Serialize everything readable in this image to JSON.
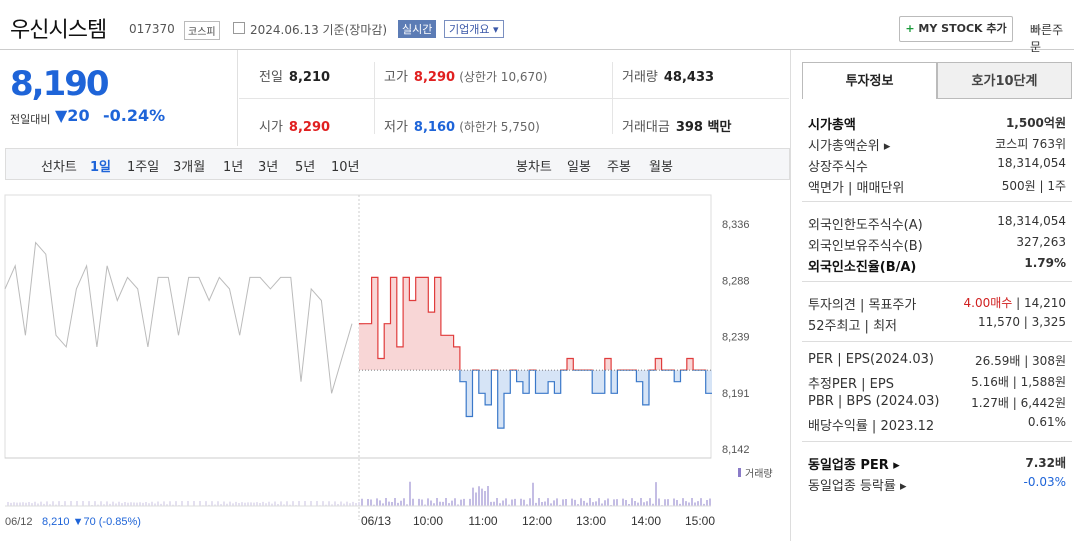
{
  "header": {
    "name": "우신시스템",
    "code": "017370",
    "market": "코스피",
    "asof": "2024.06.13 기준(장마감)",
    "live_label": "실시간",
    "corp_label": "기업개요 ▾",
    "mystock_plus": "+",
    "mystock_label": " MY STOCK 추가",
    "quick_label": "빠른주문"
  },
  "price": {
    "value": "8,190",
    "change_label": "전일대비",
    "change": "▼20",
    "pct": "-0.24%"
  },
  "stats": {
    "prev_l": "전일",
    "prev_v": "8,210",
    "high_l": "고가",
    "high_v": "8,290",
    "high_sub": "(상한가 10,670)",
    "vol_l": "거래량",
    "vol_v": "48,433",
    "open_l": "시가",
    "open_v": "8,290",
    "low_l": "저가",
    "low_v": "8,160",
    "low_sub": "(하한가 5,750)",
    "amt_l": "거래대금",
    "amt_v": "398 백만"
  },
  "periods": {
    "line_label": "선차트",
    "line": [
      "1일",
      "1주일",
      "3개월",
      "1년",
      "3년",
      "5년",
      "10년"
    ],
    "candle_label": "봉차트",
    "candle": [
      "일봉",
      "주봉",
      "월봉"
    ]
  },
  "chart_data": {
    "type": "line",
    "ylim": [
      8142,
      8336
    ],
    "yticks": [
      "8,336",
      "8,288",
      "8,239",
      "8,191",
      "8,142"
    ],
    "xticks": [
      "06/13",
      "10:00",
      "11:00",
      "12:00",
      "13:00",
      "14:00",
      "15:00"
    ],
    "xstart": "06/12",
    "prev_summary": "8,210 ▼70 (-0.85%)",
    "volume_label": "거래량",
    "baseline": 8210,
    "prev_day": [
      8280,
      8300,
      8240,
      8320,
      8310,
      8240,
      8230,
      8280,
      8300,
      8230,
      8300,
      8270,
      8290,
      8280,
      8230,
      8290,
      8290,
      8240,
      8290,
      8290,
      8270,
      8290,
      8280,
      8240,
      8290,
      8290,
      8280,
      8290,
      8290,
      8200,
      8280,
      8270,
      8190,
      8220,
      8250
    ],
    "today": [
      8250,
      8250,
      8290,
      8220,
      8250,
      8290,
      8230,
      8290,
      8270,
      8290,
      8290,
      8260,
      8290,
      8240,
      8240,
      8230,
      8200,
      8170,
      8210,
      8190,
      8180,
      8210,
      8160,
      8190,
      8210,
      8200,
      8190,
      8210,
      8190,
      8190,
      8200,
      8190,
      8210,
      8220,
      8210,
      8210,
      8210,
      8190,
      8190,
      8220,
      8190,
      8210,
      8210,
      8210,
      8200,
      8180,
      8210,
      8220,
      8210,
      8210,
      8200,
      8210,
      8220,
      8210,
      8210,
      8190,
      8190
    ],
    "series_colors": {
      "up": "#e03c3c",
      "down": "#3a78c9",
      "prev": "#bbbbbb"
    }
  },
  "side": {
    "tab_on": "투자정보",
    "tab_off": "호가10단계",
    "rows1": [
      {
        "k": "시가총액",
        "v": "1,500억원"
      },
      {
        "k": "시가총액순위 ▸",
        "v": "코스피 763위"
      },
      {
        "k": "상장주식수",
        "v": "18,314,054"
      },
      {
        "k": "액면가 | 매매단위",
        "v": "500원 | 1주"
      }
    ],
    "rows2": [
      {
        "k": "외국인한도주식수(A)",
        "v": "18,314,054"
      },
      {
        "k": "외국인보유주식수(B)",
        "v": "327,263"
      },
      {
        "k": "외국인소진율(B/A)",
        "v": "1.79%"
      }
    ],
    "opinion": {
      "k": "투자의견 | 목표주가",
      "v1": "4.00매수",
      "v2": " | 14,210"
    },
    "wk52": {
      "k": "52주최고 | 최저",
      "v": "11,570 | 3,325"
    },
    "rows4": [
      {
        "k": "PER | EPS(2024.03)",
        "v": "26.59배 | 308원"
      },
      {
        "k": "추정PER | EPS",
        "v": "5.16배 | 1,588원"
      },
      {
        "k": "PBR | BPS (2024.03)",
        "v": "1.27배 | 6,442원"
      },
      {
        "k": "배당수익률 | 2023.12",
        "v": "0.61%"
      }
    ],
    "rows5": [
      {
        "k": "동일업종 PER ▸",
        "v": "7.32배"
      },
      {
        "k": "동일업종 등락률 ▸",
        "v": "-0.03%"
      }
    ]
  }
}
